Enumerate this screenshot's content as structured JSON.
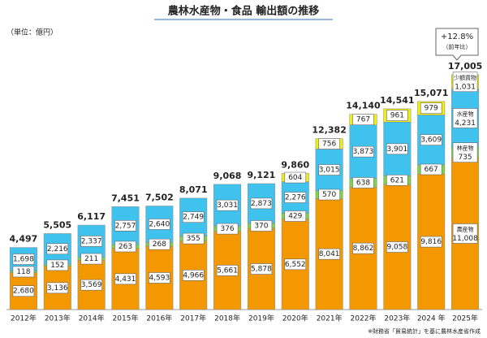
{
  "chart_data": {
    "type": "stacked-bar",
    "title": "農林水産物・食品 輸出額の推移",
    "unit_label": "（単位：億円）",
    "source": "※財務省「貿易統計」を基に農林水産省作成",
    "annotation": {
      "change": "+12.8%",
      "note": "（前年比）"
    },
    "categories": [
      "2012年",
      "2013年",
      "2014年",
      "2015年",
      "2016年",
      "2017年",
      "2018年",
      "2019年",
      "2020年",
      "2021年",
      "2022年",
      "2023年",
      "2024 年",
      "2025年"
    ],
    "series": [
      {
        "name": "農産物",
        "color": "#f39800",
        "values": [
          2680,
          3136,
          3569,
          4431,
          4593,
          4966,
          5661,
          5878,
          6552,
          8041,
          8862,
          9058,
          9816,
          11008
        ],
        "value_labels": [
          "2,680",
          "3,136",
          "3,569",
          "4,431",
          "4,593",
          "4,966",
          "5,661",
          "5,878",
          "6,552",
          "8,041",
          "8,862",
          "9,058",
          "9,816",
          "11,008"
        ]
      },
      {
        "name": "林産物",
        "color": "#7fd24a",
        "values": [
          118,
          152,
          211,
          263,
          268,
          355,
          376,
          370,
          429,
          570,
          638,
          621,
          667,
          735
        ]
      },
      {
        "name": "水産物",
        "color": "#3fc3ee",
        "values": [
          1698,
          2216,
          2337,
          2757,
          2640,
          2749,
          3031,
          2873,
          2276,
          3015,
          3873,
          3901,
          3609,
          4231
        ],
        "value_labels": [
          "1,698",
          "2,216",
          "2,337",
          "2,757",
          "2,640",
          "2,749",
          "3,031",
          "2,873",
          "2,276",
          "3,015",
          "3,873",
          "3,901",
          "3,609",
          "4,231"
        ]
      },
      {
        "name": "少額貨物",
        "color": "#eeee10",
        "values": [
          null,
          null,
          null,
          null,
          null,
          null,
          null,
          null,
          604,
          756,
          767,
          961,
          979,
          1031
        ],
        "value_labels": [
          null,
          null,
          null,
          null,
          null,
          null,
          null,
          null,
          "604",
          "756",
          "767",
          "961",
          "979",
          "1,031"
        ]
      }
    ],
    "totals": [
      4497,
      5505,
      6117,
      7451,
      7502,
      8071,
      9068,
      9121,
      9860,
      12382,
      14140,
      14541,
      15071,
      17005
    ],
    "total_labels": [
      "4,497",
      "5,505",
      "6,117",
      "7,451",
      "7,502",
      "8,071",
      "9,068",
      "9,121",
      "9,860",
      "12,382",
      "14,140",
      "14,541",
      "15,071",
      "17,005"
    ]
  }
}
